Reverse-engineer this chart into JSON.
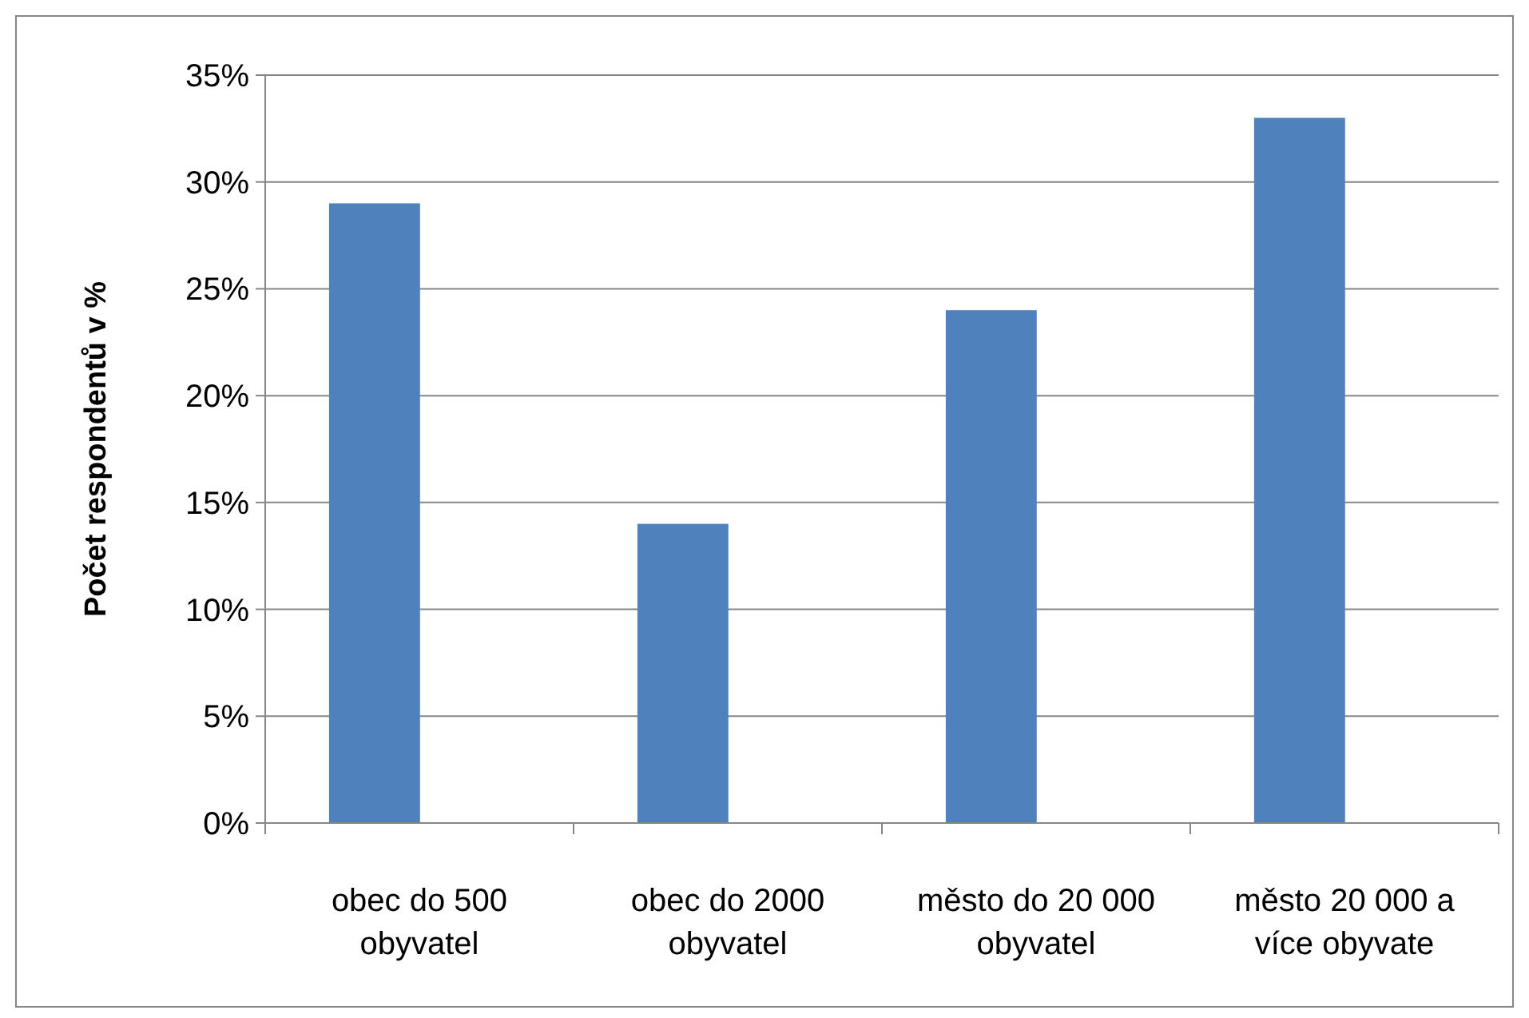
{
  "chart_data": {
    "type": "bar",
    "ylabel": "Počet respondentů v %",
    "categories": [
      "obec do 500 obyvatel",
      "obec do 2000 obyvatel",
      "město do 20 000 obyvatel",
      "město 20 000 a více obyvate"
    ],
    "values": [
      29,
      14,
      24,
      33
    ],
    "color": "#4f81bd",
    "ylim": [
      0,
      35
    ],
    "yticks": [
      {
        "value": 0,
        "label": "0%"
      },
      {
        "value": 5,
        "label": "5%"
      },
      {
        "value": 10,
        "label": "10%"
      },
      {
        "value": 15,
        "label": "15%"
      },
      {
        "value": 20,
        "label": "20%"
      },
      {
        "value": 25,
        "label": "25%"
      },
      {
        "value": 30,
        "label": "30%"
      },
      {
        "value": 35,
        "label": "35%"
      }
    ],
    "grid": "y"
  }
}
